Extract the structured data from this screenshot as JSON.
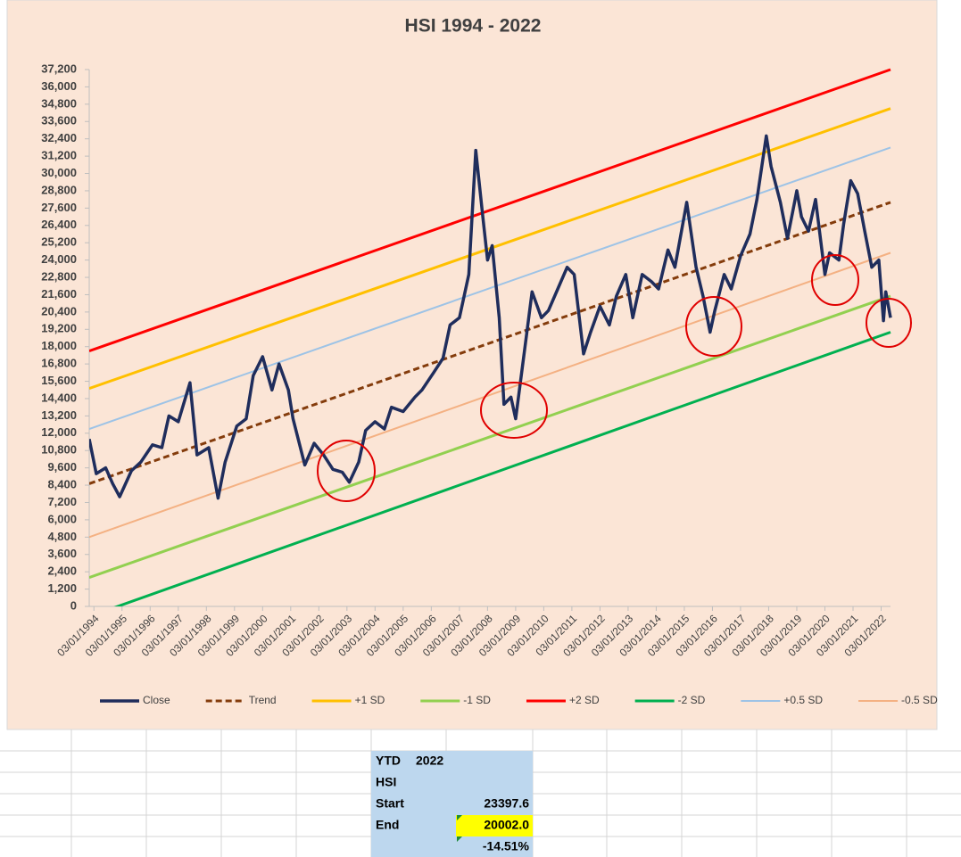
{
  "chart_data": {
    "type": "line",
    "title": "HSI  1994 - 2022",
    "xlim": [
      "01/01/1994",
      "07/01/2022"
    ],
    "xticks": [
      "03/01/1994",
      "03/01/1995",
      "03/01/1996",
      "03/01/1997",
      "03/01/1998",
      "03/01/1999",
      "03/01/2000",
      "03/01/2001",
      "03/01/2002",
      "03/01/2003",
      "03/01/2004",
      "03/01/2005",
      "03/01/2006",
      "03/01/2007",
      "03/01/2008",
      "03/01/2009",
      "03/01/2010",
      "03/01/2011",
      "03/01/2012",
      "03/01/2013",
      "03/01/2014",
      "03/01/2015",
      "03/01/2016",
      "03/01/2017",
      "03/01/2018",
      "03/01/2019",
      "03/01/2020",
      "03/01/2021",
      "03/01/2022"
    ],
    "ylim": [
      0,
      37200
    ],
    "yticks": [
      0,
      {
        "value": 1200,
        "label": "1,200"
      },
      {
        "value": 2400,
        "label": "2,400"
      },
      {
        "value": 3600,
        "label": "3,600"
      },
      {
        "value": 4800,
        "label": "4,800"
      },
      {
        "value": 6000,
        "label": "6,000"
      },
      {
        "value": 7200,
        "label": "7,200"
      },
      {
        "value": 8400,
        "label": "8,400"
      },
      {
        "value": 9600,
        "label": "9,600"
      },
      {
        "value": 10800,
        "label": "10,800"
      },
      {
        "value": 12000,
        "label": "12,000"
      },
      {
        "value": 13200,
        "label": "13,200"
      },
      {
        "value": 14400,
        "label": "14,400"
      },
      {
        "value": 15600,
        "label": "15,600"
      },
      {
        "value": 16800,
        "label": "16,800"
      },
      {
        "value": 18000,
        "label": "18,000"
      },
      {
        "value": 19200,
        "label": "19,200"
      },
      {
        "value": 20400,
        "label": "20,400"
      },
      {
        "value": 21600,
        "label": "21,600"
      },
      {
        "value": 22800,
        "label": "22,800"
      },
      {
        "value": 24000,
        "label": "24,000"
      },
      {
        "value": 25200,
        "label": "25,200"
      },
      {
        "value": 26400,
        "label": "26,400"
      },
      {
        "value": 27600,
        "label": "27,600"
      },
      {
        "value": 28800,
        "label": "28,800"
      },
      {
        "value": 30000,
        "label": "30,000"
      },
      {
        "value": 31200,
        "label": "31,200"
      },
      {
        "value": 32400,
        "label": "32,400"
      },
      {
        "value": 33600,
        "label": "33,600"
      },
      {
        "value": 34800,
        "label": "34,800"
      },
      {
        "value": 36000,
        "label": "36,000"
      },
      {
        "value": 37200,
        "label": "37,200"
      }
    ],
    "grid": false,
    "legend": "bottom",
    "series": [
      {
        "name": "Close",
        "color": "#1f2d5c",
        "line_width": 3.5,
        "style": "solid",
        "x": [
          "01/01/1994",
          "04/01/1994",
          "08/01/1994",
          "11/01/1994",
          "02/01/1995",
          "07/01/1995",
          "11/01/1995",
          "04/01/1996",
          "08/01/1996",
          "11/01/1996",
          "03/01/1997",
          "08/01/1997",
          "11/01/1997",
          "04/01/1998",
          "08/01/1998",
          "11/01/1998",
          "04/01/1999",
          "08/01/1999",
          "11/01/1999",
          "03/01/2000",
          "07/01/2000",
          "10/01/2000",
          "02/01/2001",
          "04/01/2001",
          "09/01/2001",
          "01/01/2002",
          "05/01/2002",
          "09/01/2002",
          "01/01/2003",
          "04/01/2003",
          "08/01/2003",
          "11/01/2003",
          "03/01/2004",
          "07/01/2004",
          "10/01/2004",
          "03/01/2005",
          "08/01/2005",
          "11/01/2005",
          "04/01/2006",
          "08/01/2006",
          "11/01/2006",
          "03/01/2007",
          "07/01/2007",
          "10/01/2007",
          "01/01/2008",
          "03/01/2008",
          "05/01/2008",
          "08/01/2008",
          "10/01/2008",
          "01/01/2009",
          "03/01/2009",
          "07/01/2009",
          "10/01/2009",
          "02/01/2010",
          "05/01/2010",
          "09/01/2010",
          "01/01/2011",
          "04/01/2011",
          "08/01/2011",
          "11/01/2011",
          "03/01/2012",
          "07/01/2012",
          "10/01/2012",
          "02/01/2013",
          "05/01/2013",
          "09/01/2013",
          "01/01/2014",
          "04/01/2014",
          "08/01/2014",
          "11/01/2014",
          "04/01/2015",
          "08/01/2015",
          "11/01/2015",
          "02/01/2016",
          "04/01/2016",
          "08/01/2016",
          "11/01/2016",
          "03/01/2017",
          "07/01/2017",
          "10/01/2017",
          "02/01/2018",
          "04/01/2018",
          "08/01/2018",
          "11/01/2018",
          "03/01/2019",
          "05/01/2019",
          "08/01/2019",
          "11/01/2019",
          "03/01/2020",
          "05/01/2020",
          "09/01/2020",
          "11/01/2020",
          "02/01/2021",
          "05/01/2021",
          "08/01/2021",
          "11/01/2021",
          "02/01/2022",
          "04/01/2022",
          "05/01/2022",
          "07/01/2022"
        ],
        "values": [
          11600,
          9200,
          9600,
          8500,
          7600,
          9400,
          10000,
          11200,
          11000,
          13200,
          12800,
          15500,
          10500,
          11000,
          7500,
          10000,
          12500,
          13000,
          16000,
          17300,
          15000,
          16800,
          15000,
          13000,
          9800,
          11300,
          10500,
          9500,
          9300,
          8600,
          10000,
          12200,
          12800,
          12300,
          13800,
          13500,
          14500,
          15000,
          16200,
          17200,
          19500,
          20000,
          23000,
          31600,
          27000,
          24000,
          25000,
          20000,
          14000,
          14500,
          13000,
          18000,
          21800,
          20000,
          20500,
          22000,
          23500,
          23000,
          17500,
          19000,
          20800,
          19500,
          21500,
          23000,
          20000,
          23000,
          22500,
          22000,
          24700,
          23500,
          28000,
          23500,
          21500,
          19000,
          20500,
          23000,
          22000,
          24300,
          25800,
          28200,
          32600,
          30500,
          28000,
          25500,
          28800,
          27000,
          26000,
          28200,
          23000,
          24500,
          24000,
          26500,
          29500,
          28600,
          26000,
          23500,
          24000,
          19800,
          21800,
          20000
        ]
      },
      {
        "name": "Trend",
        "color": "#843c0c",
        "line_width": 3,
        "style": "dashed",
        "x": [
          "01/01/1994",
          "07/01/2022"
        ],
        "values": [
          8500,
          28000
        ]
      },
      {
        "name": "+1 SD",
        "color": "#ffc000",
        "line_width": 3,
        "style": "solid",
        "x": [
          "01/01/1994",
          "07/01/2022"
        ],
        "values": [
          15100,
          34500
        ]
      },
      {
        "name": "-1 SD",
        "color": "#92d050",
        "line_width": 3,
        "style": "solid",
        "x": [
          "01/01/1994",
          "07/01/2022"
        ],
        "values": [
          2000,
          21500
        ]
      },
      {
        "name": "+2 SD",
        "color": "#ff0000",
        "line_width": 3,
        "style": "solid",
        "x": [
          "01/01/1994",
          "07/01/2022"
        ],
        "values": [
          17700,
          37200
        ]
      },
      {
        "name": "-2 SD",
        "color": "#00b050",
        "line_width": 3,
        "style": "solid",
        "x": [
          "01/01/1994",
          "07/01/2022"
        ],
        "values": [
          -700,
          19000
        ]
      },
      {
        "name": "+0.5 SD",
        "color": "#9dc3e6",
        "line_width": 2,
        "style": "solid",
        "x": [
          "01/01/1994",
          "07/01/2022"
        ],
        "values": [
          12300,
          31800
        ]
      },
      {
        "name": "-0.5 SD",
        "color": "#f4b183",
        "line_width": 2,
        "style": "solid",
        "x": [
          "01/01/1994",
          "07/01/2022"
        ],
        "values": [
          4800,
          24500
        ]
      }
    ]
  },
  "cells": {
    "ytd_label": "YTD",
    "ytd_year": "2022",
    "index": "HSI",
    "start_label": "Start",
    "start_value": "23397.6",
    "end_label": "End",
    "end_value": "20002.0",
    "change": "-14.51%"
  }
}
